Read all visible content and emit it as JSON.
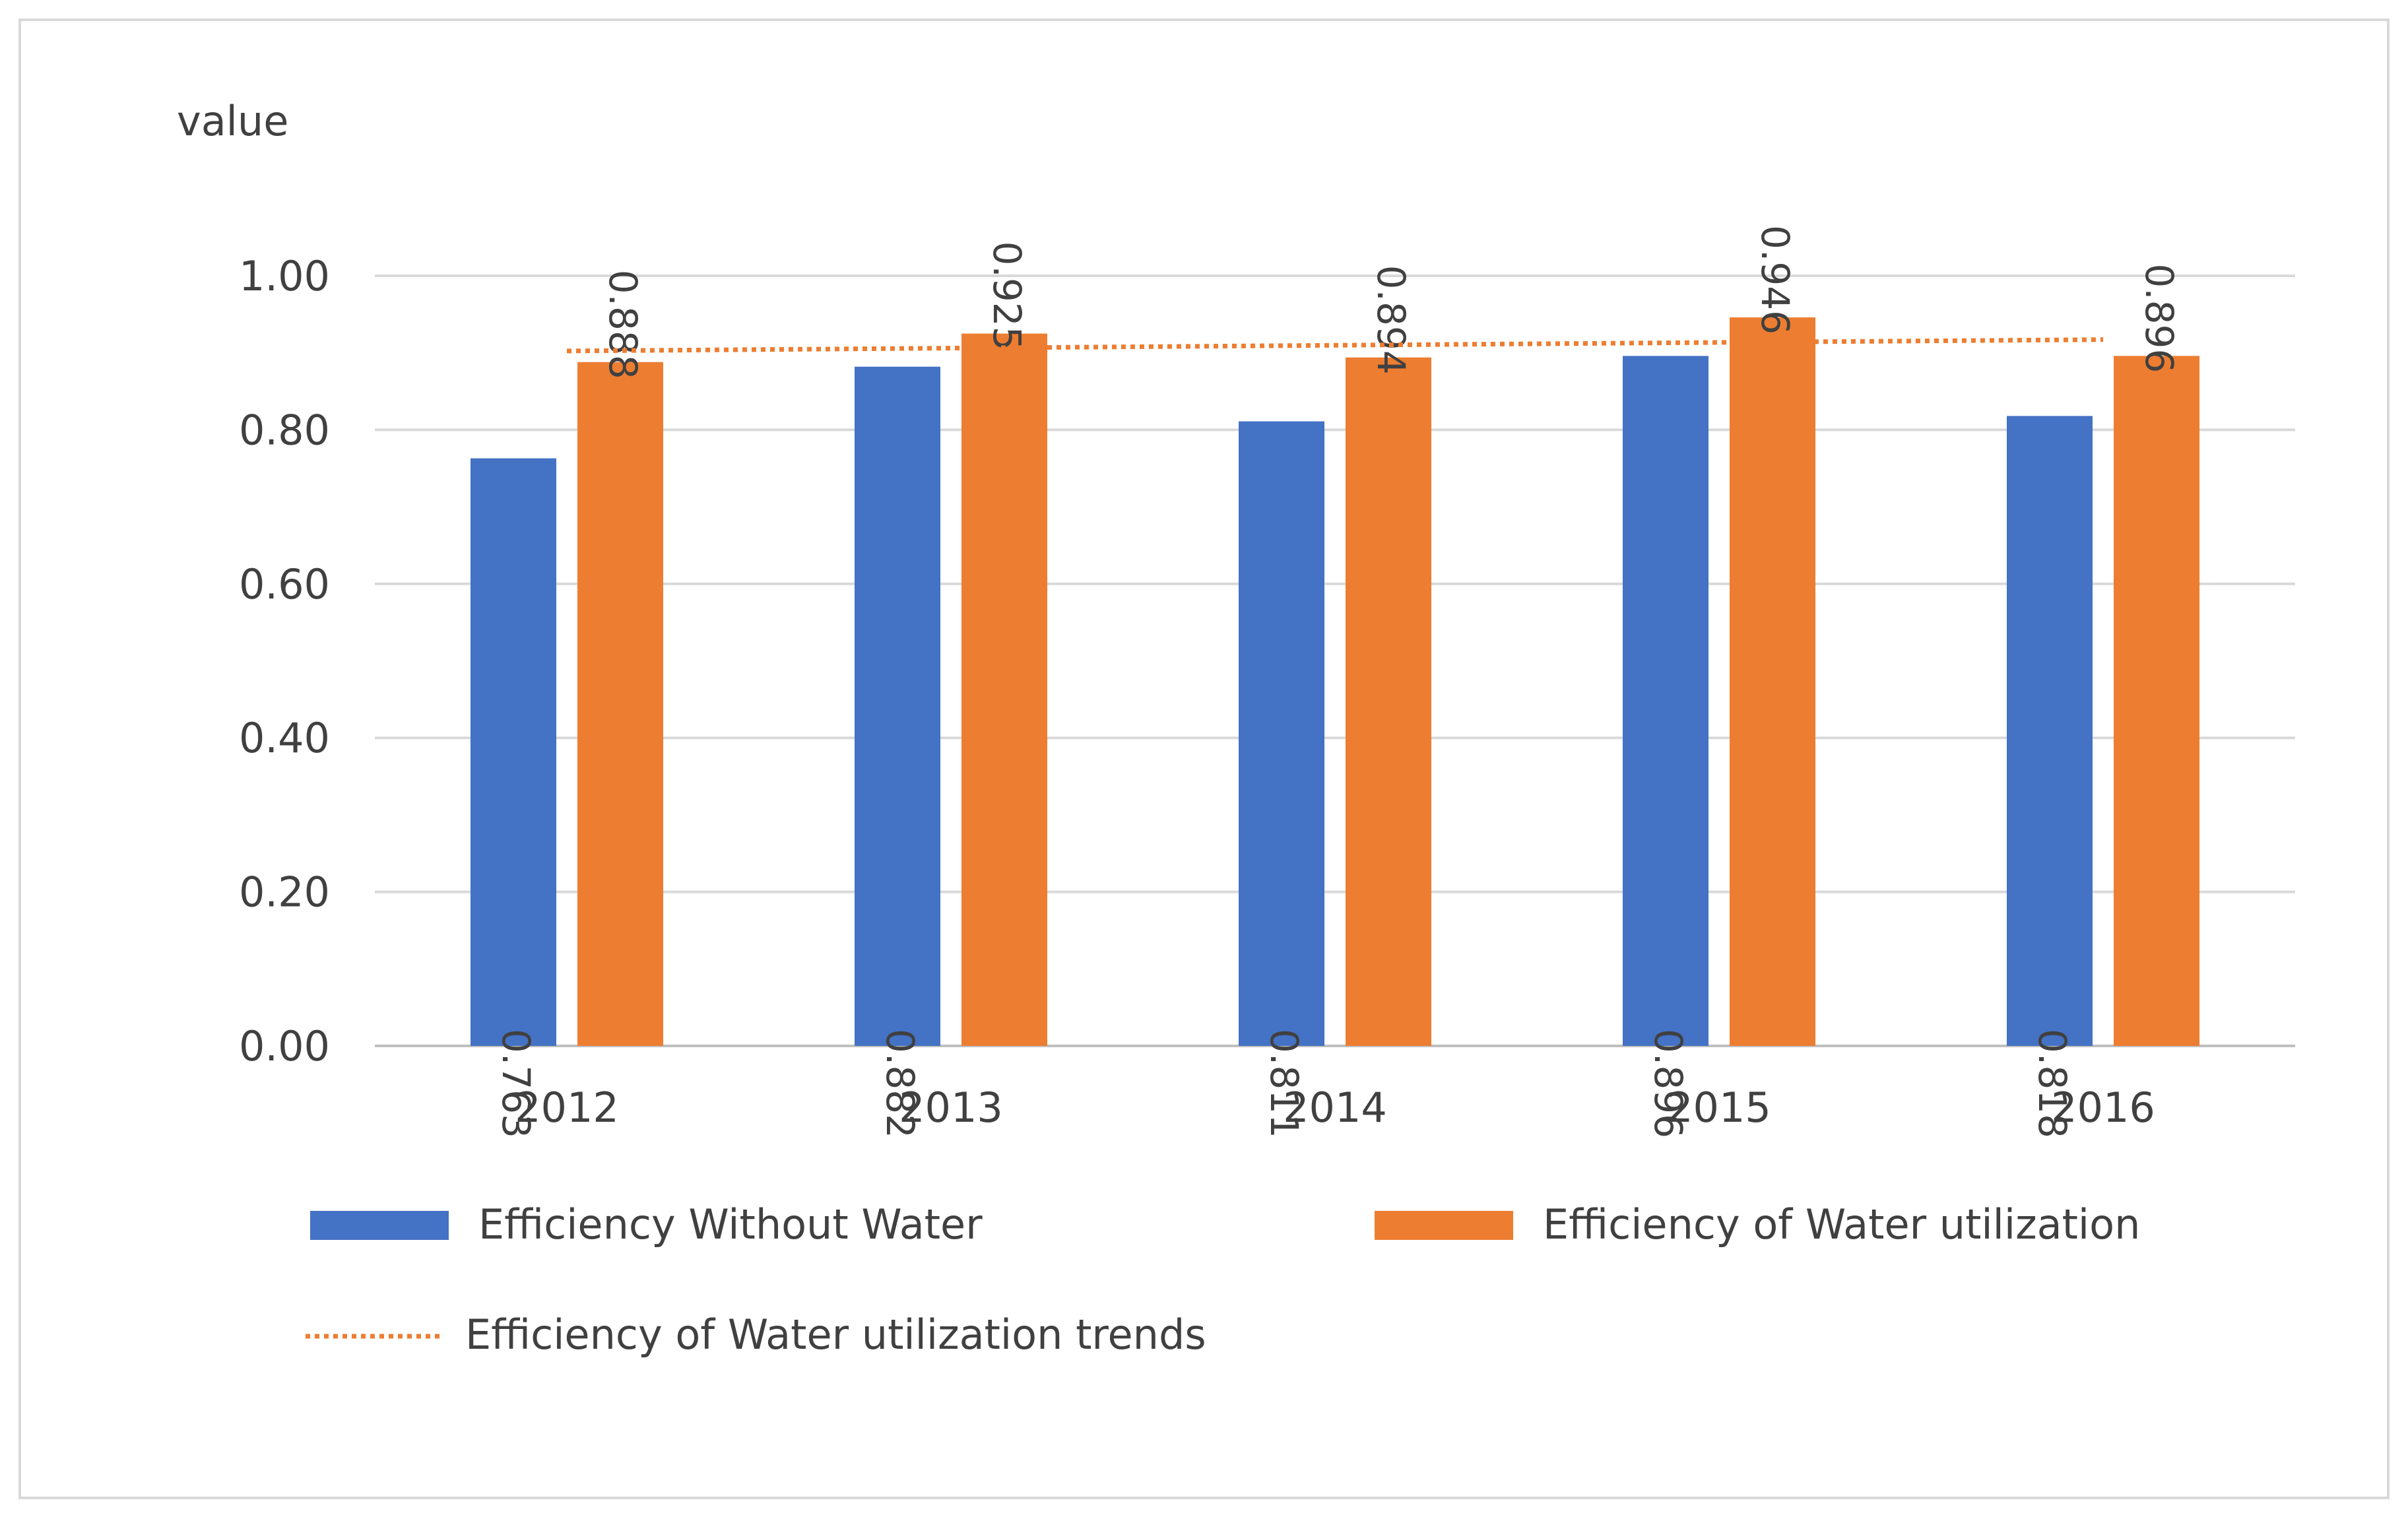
{
  "chart_data": {
    "type": "bar",
    "ylabel": "value",
    "categories": [
      "2012",
      "2013",
      "2014",
      "2015",
      "2016"
    ],
    "ylim": [
      0,
      1
    ],
    "yticks": [
      0,
      0.2,
      0.4,
      0.6,
      0.8,
      1.0
    ],
    "ytick_labels": [
      "0.00",
      "0.20",
      "0.40",
      "0.60",
      "0.80",
      "1.00"
    ],
    "grid": true,
    "series": [
      {
        "name": "Efficiency Without Water",
        "color": "#4472C4",
        "values": [
          0.763,
          0.882,
          0.811,
          0.896,
          0.818
        ],
        "labels": [
          "0.763",
          "0.882",
          "0.811",
          "0.896",
          "0.818"
        ],
        "label_position": "inside-base"
      },
      {
        "name": "Efficiency of Water utilization",
        "color": "#ED7D31",
        "values": [
          0.888,
          0.925,
          0.894,
          0.946,
          0.896
        ],
        "labels": [
          "0.888",
          "0.925",
          "0.894",
          "0.946",
          "0.896"
        ],
        "label_position": "inside-end"
      }
    ],
    "trendline": {
      "name": "Efficiency of Water utilization trends",
      "of_series": "Efficiency of Water utilization",
      "type": "linear",
      "color": "#ED7D31",
      "style": "dotted"
    },
    "legend_position": "bottom"
  }
}
